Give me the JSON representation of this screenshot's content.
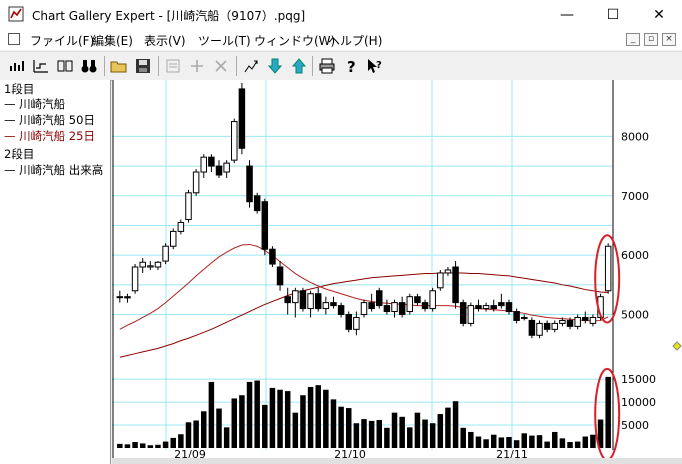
{
  "window": {
    "title": "Chart Gallery Expert - [川崎汽船（9107）.pqg]",
    "minimize": "—",
    "maximize": "☐",
    "close": "✕"
  },
  "menu": {
    "items": [
      "ファイル(F)",
      "編集(E)",
      "表示(V)",
      "ツール(T)",
      "ウィンドウ(W)",
      "ヘルプ(H)"
    ]
  },
  "toolbar": {
    "buttons": [
      "candle-chart-icon",
      "line-chart-icon",
      "compare-chart-icon",
      "binoculars-icon",
      "open-folder-icon",
      "save-disk-icon",
      "properties-icon",
      "add-icon",
      "delete-icon",
      "edit-chart-icon",
      "move-down-icon",
      "move-up-icon",
      "print-icon",
      "help-icon",
      "context-help-icon"
    ]
  },
  "legend": {
    "section1": "1段目",
    "item1": "— 川崎汽船",
    "item2": "— 川崎汽船 50日",
    "item3": "— 川崎汽船 25日",
    "section2": "2段目",
    "item4": "— 川崎汽船 出来高",
    "colors": {
      "price": "#000000",
      "ma50": "#8b0000",
      "ma25": "#b22222"
    }
  },
  "chart_data": {
    "type": "candlestick",
    "price_axis": {
      "ticks": [
        "8000",
        "7000",
        "6000",
        "5000"
      ]
    },
    "volume_axis": {
      "ticks": [
        "15000",
        "10000",
        "5000"
      ]
    },
    "x_ticks": [
      "21/09",
      "21/10",
      "21/11"
    ],
    "candles": [
      {
        "o": 5300,
        "h": 5400,
        "l": 5200,
        "c": 5300
      },
      {
        "o": 5300,
        "h": 5350,
        "l": 5200,
        "c": 5280
      },
      {
        "o": 5400,
        "h": 5850,
        "l": 5350,
        "c": 5800
      },
      {
        "o": 5800,
        "h": 5950,
        "l": 5700,
        "c": 5880
      },
      {
        "o": 5800,
        "h": 5900,
        "l": 5750,
        "c": 5820
      },
      {
        "o": 5800,
        "h": 5900,
        "l": 5750,
        "c": 5880
      },
      {
        "o": 5900,
        "h": 6200,
        "l": 5850,
        "c": 6150
      },
      {
        "o": 6150,
        "h": 6450,
        "l": 6100,
        "c": 6400
      },
      {
        "o": 6400,
        "h": 6600,
        "l": 6350,
        "c": 6550
      },
      {
        "o": 6600,
        "h": 7100,
        "l": 6550,
        "c": 7050
      },
      {
        "o": 7050,
        "h": 7450,
        "l": 7000,
        "c": 7400
      },
      {
        "o": 7400,
        "h": 7700,
        "l": 7300,
        "c": 7650
      },
      {
        "o": 7650,
        "h": 7700,
        "l": 7400,
        "c": 7500
      },
      {
        "o": 7500,
        "h": 7600,
        "l": 7300,
        "c": 7350
      },
      {
        "o": 7400,
        "h": 7600,
        "l": 7300,
        "c": 7550
      },
      {
        "o": 7600,
        "h": 8300,
        "l": 7550,
        "c": 8250
      },
      {
        "o": 8800,
        "h": 8900,
        "l": 7700,
        "c": 7800
      },
      {
        "o": 7500,
        "h": 7600,
        "l": 6800,
        "c": 6900
      },
      {
        "o": 7000,
        "h": 7050,
        "l": 6700,
        "c": 6750
      },
      {
        "o": 6900,
        "h": 6950,
        "l": 6000,
        "c": 6100
      },
      {
        "o": 6100,
        "h": 6150,
        "l": 5800,
        "c": 5850
      },
      {
        "o": 5800,
        "h": 5900,
        "l": 5400,
        "c": 5500
      },
      {
        "o": 5300,
        "h": 5450,
        "l": 5000,
        "c": 5200
      },
      {
        "o": 5200,
        "h": 5450,
        "l": 4950,
        "c": 5400
      },
      {
        "o": 5400,
        "h": 5450,
        "l": 5050,
        "c": 5100
      },
      {
        "o": 5100,
        "h": 5400,
        "l": 4950,
        "c": 5350
      },
      {
        "o": 5350,
        "h": 5450,
        "l": 5050,
        "c": 5100
      },
      {
        "o": 5100,
        "h": 5300,
        "l": 5000,
        "c": 5200
      },
      {
        "o": 5200,
        "h": 5300,
        "l": 5100,
        "c": 5150
      },
      {
        "o": 5150,
        "h": 5200,
        "l": 4950,
        "c": 5000
      },
      {
        "o": 5000,
        "h": 5050,
        "l": 4700,
        "c": 4750
      },
      {
        "o": 4750,
        "h": 5050,
        "l": 4650,
        "c": 4950
      },
      {
        "o": 5000,
        "h": 5250,
        "l": 4950,
        "c": 5200
      },
      {
        "o": 5200,
        "h": 5350,
        "l": 5050,
        "c": 5100
      },
      {
        "o": 5400,
        "h": 5450,
        "l": 5100,
        "c": 5150
      },
      {
        "o": 5150,
        "h": 5250,
        "l": 5000,
        "c": 5050
      },
      {
        "o": 5050,
        "h": 5250,
        "l": 4950,
        "c": 5200
      },
      {
        "o": 5200,
        "h": 5300,
        "l": 4950,
        "c": 5000
      },
      {
        "o": 5050,
        "h": 5350,
        "l": 5000,
        "c": 5300
      },
      {
        "o": 5300,
        "h": 5350,
        "l": 5150,
        "c": 5200
      },
      {
        "o": 5200,
        "h": 5250,
        "l": 5050,
        "c": 5100
      },
      {
        "o": 5100,
        "h": 5450,
        "l": 5050,
        "c": 5400
      },
      {
        "o": 5450,
        "h": 5750,
        "l": 5400,
        "c": 5700
      },
      {
        "o": 5700,
        "h": 5800,
        "l": 5650,
        "c": 5750
      },
      {
        "o": 5800,
        "h": 5900,
        "l": 5100,
        "c": 5200
      },
      {
        "o": 5200,
        "h": 5250,
        "l": 4800,
        "c": 4850
      },
      {
        "o": 4850,
        "h": 5200,
        "l": 4800,
        "c": 5150
      },
      {
        "o": 5150,
        "h": 5250,
        "l": 5050,
        "c": 5100
      },
      {
        "o": 5100,
        "h": 5200,
        "l": 5050,
        "c": 5150
      },
      {
        "o": 5150,
        "h": 5250,
        "l": 5050,
        "c": 5100
      },
      {
        "o": 5200,
        "h": 5350,
        "l": 5100,
        "c": 5150
      },
      {
        "o": 5200,
        "h": 5250,
        "l": 5000,
        "c": 5050
      },
      {
        "o": 5050,
        "h": 5100,
        "l": 4850,
        "c": 4900
      },
      {
        "o": 4950,
        "h": 5000,
        "l": 4900,
        "c": 4950
      },
      {
        "o": 4900,
        "h": 4950,
        "l": 4600,
        "c": 4650
      },
      {
        "o": 4650,
        "h": 4900,
        "l": 4600,
        "c": 4850
      },
      {
        "o": 4850,
        "h": 4900,
        "l": 4700,
        "c": 4750
      },
      {
        "o": 4750,
        "h": 4900,
        "l": 4700,
        "c": 4850
      },
      {
        "o": 4850,
        "h": 4950,
        "l": 4800,
        "c": 4900
      },
      {
        "o": 4900,
        "h": 4950,
        "l": 4750,
        "c": 4800
      },
      {
        "o": 4800,
        "h": 5000,
        "l": 4750,
        "c": 4950
      },
      {
        "o": 4950,
        "h": 5050,
        "l": 4850,
        "c": 4900
      },
      {
        "o": 4850,
        "h": 5000,
        "l": 4800,
        "c": 4950
      },
      {
        "o": 4950,
        "h": 5350,
        "l": 4900,
        "c": 5300
      },
      {
        "o": 5400,
        "h": 6200,
        "l": 5350,
        "c": 6150
      }
    ],
    "ma25": [
      4750,
      4820,
      4880,
      4950,
      5020,
      5100,
      5200,
      5310,
      5420,
      5530,
      5650,
      5760,
      5870,
      5970,
      6050,
      6120,
      6170,
      6180,
      6150,
      6080,
      5990,
      5890,
      5790,
      5690,
      5610,
      5540,
      5480,
      5430,
      5390,
      5350,
      5310,
      5270,
      5240,
      5220,
      5200,
      5190,
      5180,
      5170,
      5160,
      5150,
      5150,
      5150,
      5150,
      5150,
      5140,
      5120,
      5110,
      5100,
      5090,
      5080,
      5070,
      5060,
      5040,
      5020,
      4990,
      4970,
      4950,
      4940,
      4930,
      4920,
      4910,
      4900,
      4890,
      4900,
      4960
    ],
    "ma50": [
      4280,
      4310,
      4340,
      4370,
      4400,
      4430,
      4470,
      4510,
      4560,
      4600,
      4650,
      4700,
      4750,
      4810,
      4870,
      4930,
      4990,
      5050,
      5110,
      5170,
      5220,
      5270,
      5320,
      5360,
      5400,
      5430,
      5460,
      5490,
      5520,
      5540,
      5560,
      5580,
      5600,
      5620,
      5630,
      5640,
      5650,
      5660,
      5670,
      5680,
      5690,
      5690,
      5700,
      5700,
      5700,
      5700,
      5690,
      5690,
      5680,
      5670,
      5660,
      5650,
      5630,
      5610,
      5590,
      5570,
      5550,
      5530,
      5500,
      5480,
      5450,
      5420,
      5400,
      5380,
      5370
    ],
    "volume": [
      900,
      800,
      1300,
      1000,
      600,
      700,
      1400,
      2200,
      3000,
      5600,
      6000,
      8000,
      14400,
      8600,
      4500,
      10800,
      11500,
      14400,
      14700,
      9400,
      13100,
      12700,
      12400,
      7700,
      11500,
      13300,
      13700,
      12700,
      10600,
      9000,
      8700,
      5400,
      6300,
      5900,
      6100,
      4400,
      7700,
      6800,
      4500,
      7700,
      6200,
      5400,
      7400,
      8800,
      10200,
      4400,
      3500,
      2500,
      1900,
      2900,
      2300,
      2400,
      1700,
      3200,
      2700,
      2800,
      1400,
      3500,
      2100,
      1300,
      1400,
      2500,
      2900,
      6200,
      15500
    ]
  }
}
